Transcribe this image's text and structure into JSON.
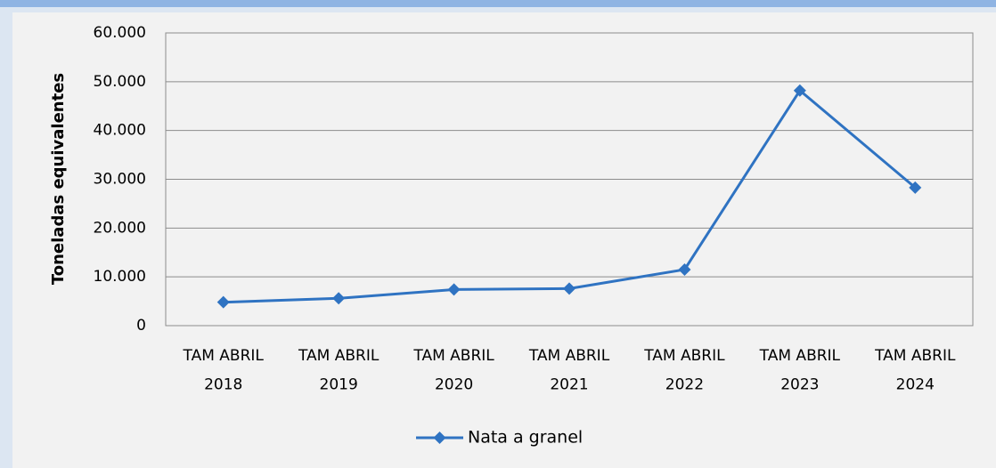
{
  "chart_data": {
    "type": "line",
    "y_label": "Toneladas equivalentes",
    "categories": [
      "TAM ABRIL\n2018",
      "TAM ABRIL\n2019",
      "TAM ABRIL\n2020",
      "TAM ABRIL\n2021",
      "TAM ABRIL\n2022",
      "TAM ABRIL\n2023",
      "TAM ABRIL\n2024"
    ],
    "series": [
      {
        "name": "Nata a granel",
        "color": "#2f73c2",
        "values": [
          4800,
          5600,
          7400,
          7600,
          11500,
          48200,
          28300
        ]
      }
    ],
    "ylim": [
      0,
      60000
    ],
    "yticks": [
      0,
      {
        "value": 10000,
        "label": "10.000"
      },
      {
        "value": 20000,
        "label": "20.000"
      },
      {
        "value": 30000,
        "label": "30.000"
      },
      {
        "value": 40000,
        "label": "40.000"
      },
      {
        "value": 50000,
        "label": "50.000"
      },
      {
        "value": 60000,
        "label": "60.000"
      }
    ],
    "grid": true,
    "legend": "bottom"
  }
}
